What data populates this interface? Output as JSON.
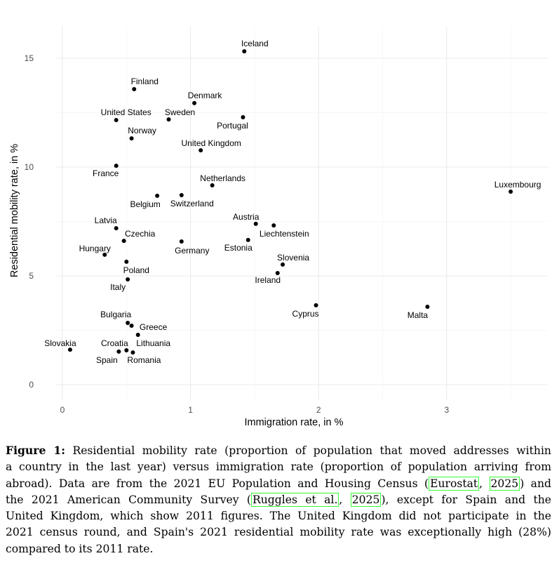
{
  "chart_data": {
    "type": "scatter",
    "xlabel": "Immigration rate, in %",
    "ylabel": "Residential mobility rate, in %",
    "xlim": [
      -0.2,
      3.8
    ],
    "ylim": [
      -0.7,
      16.7
    ],
    "xticks": [
      0,
      1,
      2,
      3
    ],
    "yticks": [
      0,
      5,
      10,
      15
    ],
    "grid": true,
    "point_color": "#000000",
    "points": [
      {
        "label": "Iceland",
        "x": 1.42,
        "y": 15.32
      },
      {
        "label": "Finland",
        "x": 0.56,
        "y": 13.58
      },
      {
        "label": "Denmark",
        "x": 1.03,
        "y": 12.94
      },
      {
        "label": "Sweden",
        "x": 0.83,
        "y": 12.19
      },
      {
        "label": "United States",
        "x": 0.42,
        "y": 12.16
      },
      {
        "label": "Portugal",
        "x": 1.41,
        "y": 12.29
      },
      {
        "label": "Norway",
        "x": 0.54,
        "y": 11.32
      },
      {
        "label": "United Kingdom",
        "x": 1.08,
        "y": 10.77
      },
      {
        "label": "France",
        "x": 0.42,
        "y": 10.06
      },
      {
        "label": "Netherlands",
        "x": 1.17,
        "y": 9.16
      },
      {
        "label": "Luxembourg",
        "x": 3.5,
        "y": 8.87
      },
      {
        "label": "Belgium",
        "x": 0.74,
        "y": 8.68
      },
      {
        "label": "Switzerland",
        "x": 0.93,
        "y": 8.71
      },
      {
        "label": "Austria",
        "x": 1.51,
        "y": 7.39
      },
      {
        "label": "Liechtenstein",
        "x": 1.65,
        "y": 7.32
      },
      {
        "label": "Latvia",
        "x": 0.42,
        "y": 7.19
      },
      {
        "label": "Czechia",
        "x": 0.48,
        "y": 6.61
      },
      {
        "label": "Germany",
        "x": 0.93,
        "y": 6.58
      },
      {
        "label": "Estonia",
        "x": 1.45,
        "y": 6.65
      },
      {
        "label": "Hungary",
        "x": 0.33,
        "y": 5.97
      },
      {
        "label": "Poland",
        "x": 0.5,
        "y": 5.65
      },
      {
        "label": "Slovenia",
        "x": 1.72,
        "y": 5.52
      },
      {
        "label": "Ireland",
        "x": 1.68,
        "y": 5.13
      },
      {
        "label": "Italy",
        "x": 0.51,
        "y": 4.84
      },
      {
        "label": "Cyprus",
        "x": 1.98,
        "y": 3.65
      },
      {
        "label": "Malta",
        "x": 2.85,
        "y": 3.58
      },
      {
        "label": "Bulgaria",
        "x": 0.51,
        "y": 2.84
      },
      {
        "label": "Greece",
        "x": 0.54,
        "y": 2.71
      },
      {
        "label": "Lithuania",
        "x": 0.59,
        "y": 2.29
      },
      {
        "label": "Slovakia",
        "x": 0.06,
        "y": 1.61
      },
      {
        "label": "Croatia",
        "x": 0.5,
        "y": 1.58
      },
      {
        "label": "Spain",
        "x": 0.44,
        "y": 1.52
      },
      {
        "label": "Romania",
        "x": 0.55,
        "y": 1.48
      }
    ]
  },
  "caption": {
    "figure_label": "Figure 1:",
    "l1": "Residential mobility rate (proportion of population that moved addresses within",
    "l2": "a country in the last year) versus immigration rate (proportion of population arriving from",
    "l3": "abroad). Data are from the 2021 EU Population and Housing Census (",
    "cite1_author": "Eurostat",
    "cite1_year": "2025",
    "l3_end": ") and",
    "l4": "the 2021 American Community Survey (",
    "cite2_author": "Ruggles et al.",
    "cite2_year": "2025",
    "l4_end": "), except for Spain and the",
    "l5": "United Kingdom, which show 2011 figures. The United Kingdom did not participate in the",
    "l6": "2021 census round, and Spain's 2021 residential mobility rate was exceptionally high (28%)",
    "l7": "compared to its 2011 rate."
  }
}
